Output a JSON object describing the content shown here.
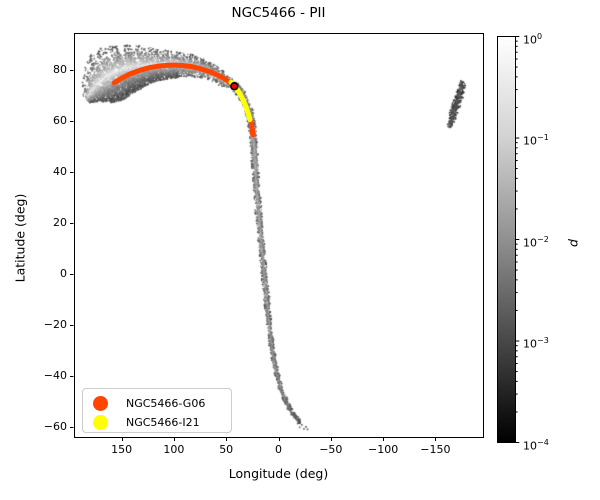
{
  "title": "NGC5466 - PII",
  "axes": {
    "xlabel": "Longitude (deg)",
    "ylabel": "Latitude (deg)",
    "x_ticks": [
      150,
      100,
      50,
      0,
      -50,
      -100,
      -150
    ],
    "x_tick_labels": [
      "150",
      "100",
      "50",
      "0",
      "−50",
      "−100",
      "−150"
    ],
    "y_ticks": [
      80,
      60,
      40,
      20,
      0,
      -20,
      -40,
      -60
    ],
    "y_tick_labels": [
      "80",
      "60",
      "40",
      "20",
      "0",
      "−20",
      "−40",
      "−60"
    ]
  },
  "colorbar": {
    "label": "d",
    "base": "10",
    "tick_exponents": [
      "0",
      "−1",
      "−2",
      "−3",
      "−4"
    ],
    "scale": "log",
    "top_color": "#ffffff",
    "bottom_color": "#000000"
  },
  "legend": {
    "items": [
      {
        "label": "NGC5466-G06",
        "color": "#ff4500"
      },
      {
        "label": "NGC5466-I21",
        "color": "#ffff00"
      }
    ]
  },
  "chart_data": {
    "type": "scatter",
    "title": "NGC5466 - PII",
    "xlabel": "Longitude (deg)",
    "ylabel": "Latitude (deg)",
    "x_axis_inverted": true,
    "xlim": [
      195.5,
      -195.5
    ],
    "ylim": [
      -63.7,
      94.5
    ],
    "grid": false,
    "legend_position": "lower left",
    "colorbar": {
      "label": "d",
      "scale": "log",
      "min": 0.0001,
      "max": 1,
      "cmap": "gray (white = high d, black = low d)"
    },
    "stream_main": {
      "name": "simulated tidal stream shaded by probability d",
      "point_format": [
        "longitude_deg",
        "latitude_deg",
        "band_width_px",
        "core_gray_0_255"
      ],
      "points": [
        [
          183,
          68,
          8,
          200
        ],
        [
          176,
          71,
          26,
          228
        ],
        [
          169,
          73.2,
          40,
          232
        ],
        [
          161,
          75.2,
          48,
          233
        ],
        [
          152,
          77,
          47,
          232
        ],
        [
          143,
          78.5,
          43,
          230
        ],
        [
          133,
          79.6,
          38,
          228
        ],
        [
          123,
          80.3,
          31,
          226
        ],
        [
          113,
          80.7,
          27,
          225
        ],
        [
          103,
          80.9,
          24,
          225
        ],
        [
          93,
          80.8,
          22,
          224
        ],
        [
          83,
          80.3,
          20,
          222
        ],
        [
          73,
          79.4,
          17,
          220
        ],
        [
          63,
          78,
          14,
          216
        ],
        [
          53,
          76,
          11,
          212
        ],
        [
          46,
          74.5,
          9.5,
          208
        ],
        [
          42,
          73.6,
          8.5,
          205
        ],
        [
          37,
          71.3,
          8,
          200
        ],
        [
          32.5,
          68.3,
          7.5,
          196
        ],
        [
          29,
          64.8,
          7.5,
          193
        ],
        [
          26.5,
          61,
          7,
          192
        ],
        [
          24.8,
          56.5,
          7,
          190
        ],
        [
          23.6,
          51.5,
          6.5,
          190
        ],
        [
          22.8,
          46,
          6.5,
          188
        ],
        [
          22,
          40,
          6,
          186
        ],
        [
          20.8,
          33,
          6,
          184
        ],
        [
          19.4,
          26,
          6,
          182
        ],
        [
          18,
          19.5,
          6,
          180
        ],
        [
          16.5,
          12.5,
          5.5,
          178
        ],
        [
          15,
          6,
          5.5,
          176
        ],
        [
          13.4,
          -1,
          5.5,
          174
        ],
        [
          11.8,
          -8,
          5.5,
          172
        ],
        [
          10.2,
          -15,
          5,
          170
        ],
        [
          8.5,
          -21.5,
          5,
          168
        ],
        [
          6.5,
          -28,
          5,
          165
        ],
        [
          4,
          -34.5,
          5,
          160
        ],
        [
          1,
          -40.5,
          4.5,
          152
        ],
        [
          -3,
          -46,
          4.5,
          142
        ],
        [
          -7.5,
          -50.5,
          4.5,
          128
        ],
        [
          -12,
          -54,
          4,
          112
        ],
        [
          -16.5,
          -56.5,
          4,
          92
        ],
        [
          -21,
          -58.5,
          3.5,
          72
        ]
      ]
    },
    "stream_wrapped": {
      "name": "wrapped stream segment near longitude −170",
      "points": [
        [
          -163.5,
          57.5,
          5,
          115
        ],
        [
          -166,
          61,
          6.5,
          105
        ],
        [
          -168.5,
          64.5,
          7.5,
          100
        ],
        [
          -171.5,
          68.5,
          7.5,
          95
        ],
        [
          -174,
          72,
          7,
          90
        ],
        [
          -176.5,
          75.5,
          5,
          85
        ]
      ]
    },
    "tail_dots": [
      [
        -17.5,
        -58.5
      ],
      [
        -19.5,
        -60
      ],
      [
        -21.5,
        -59
      ],
      [
        -23.5,
        -60.6
      ],
      [
        -25.5,
        -59.8
      ],
      [
        -27,
        -60.8
      ]
    ],
    "overlays": [
      {
        "name": "NGC5466-G06",
        "color": "#ff4500",
        "segments": [
          [
            [
              157,
              75
            ],
            [
              150,
              76.8
            ],
            [
              142,
              78.4
            ],
            [
              133,
              79.8
            ],
            [
              123,
              80.9
            ],
            [
              113,
              81.6
            ],
            [
              103,
              81.9
            ],
            [
              93,
              81.8
            ],
            [
              83,
              81.3
            ],
            [
              73,
              80.3
            ],
            [
              63,
              78.9
            ],
            [
              54,
              77.1
            ],
            [
              48,
              75.6
            ],
            [
              45.8,
              74.8
            ]
          ],
          [
            [
              26.3,
              59.8
            ],
            [
              25.2,
              57
            ],
            [
              24.5,
              54.5
            ]
          ]
        ]
      },
      {
        "name": "NGC5466-I21",
        "color": "#ffff00",
        "segments": [
          [
            [
              45.5,
              75.2
            ],
            [
              43,
              74.2
            ],
            [
              40,
              72.6
            ],
            [
              36.8,
              70.6
            ],
            [
              33.8,
              68.2
            ],
            [
              31,
              65.4
            ],
            [
              28.8,
              62.6
            ],
            [
              27.2,
              60.5
            ]
          ]
        ]
      }
    ],
    "cluster_marker": {
      "name": "NGC5466",
      "lon": 42.2,
      "lat": 73.6,
      "fill": "#ee0011",
      "edge": "#000000"
    }
  }
}
